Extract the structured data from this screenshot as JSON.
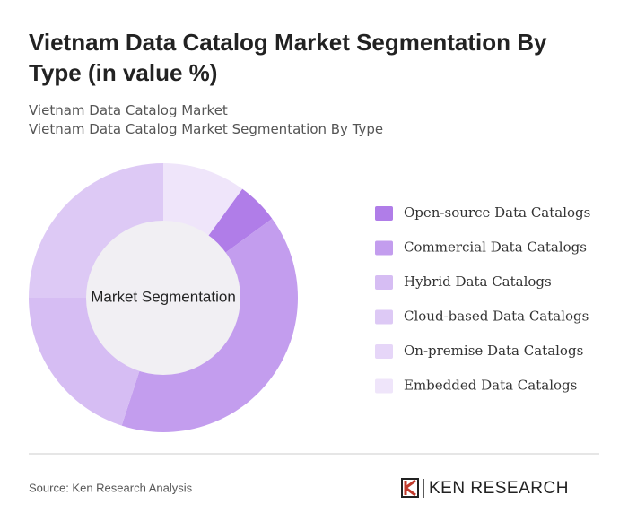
{
  "chart_data": {
    "type": "donut",
    "title": "Vietnam Data Catalog Market Segmentation By Type (in value %)",
    "subtitle": [
      "Vietnam Data Catalog Market",
      "Vietnam Data Catalog Market Segmentation By Type"
    ],
    "center_label": "Market Segmentation",
    "categories": [
      "Open-source Data Catalogs",
      "Commercial Data Catalogs",
      "Hybrid Data Catalogs",
      "Cloud-based Data Catalogs",
      "On-premise Data Catalogs",
      "Embedded Data Catalogs"
    ],
    "values": [
      5,
      40,
      20,
      25,
      0,
      10
    ],
    "colors": [
      "#b07de8",
      "#c39dee",
      "#d6bdf3",
      "#ddc9f5",
      "#e6d6f8",
      "#efe5fa"
    ],
    "source": "Source: Ken Research Analysis",
    "brand": "KEN RESEARCH"
  }
}
